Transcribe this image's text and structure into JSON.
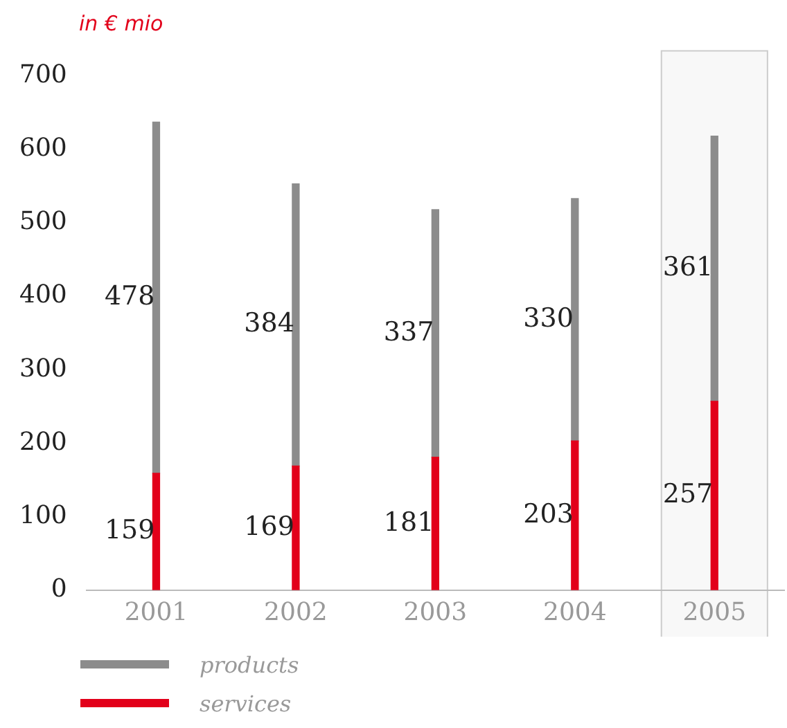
{
  "chart_data": {
    "type": "bar",
    "title": "in € mio",
    "categories": [
      "2001",
      "2002",
      "2003",
      "2004",
      "2005"
    ],
    "stacked": true,
    "series": [
      {
        "name": "services",
        "color": "#e2001a",
        "values": [
          159,
          169,
          181,
          203,
          257
        ]
      },
      {
        "name": "products",
        "color": "#8c8c8c",
        "values": [
          478,
          384,
          337,
          330,
          361
        ]
      }
    ],
    "ylim": [
      0,
      700
    ],
    "yticks": [
      0,
      100,
      200,
      300,
      400,
      500,
      600,
      700
    ],
    "grid": false,
    "legend": "bottom left",
    "data_labels": true,
    "bands": [
      {
        "axis": "x",
        "from": "2005",
        "to": "2005",
        "color": "#f8f8f8"
      }
    ]
  }
}
